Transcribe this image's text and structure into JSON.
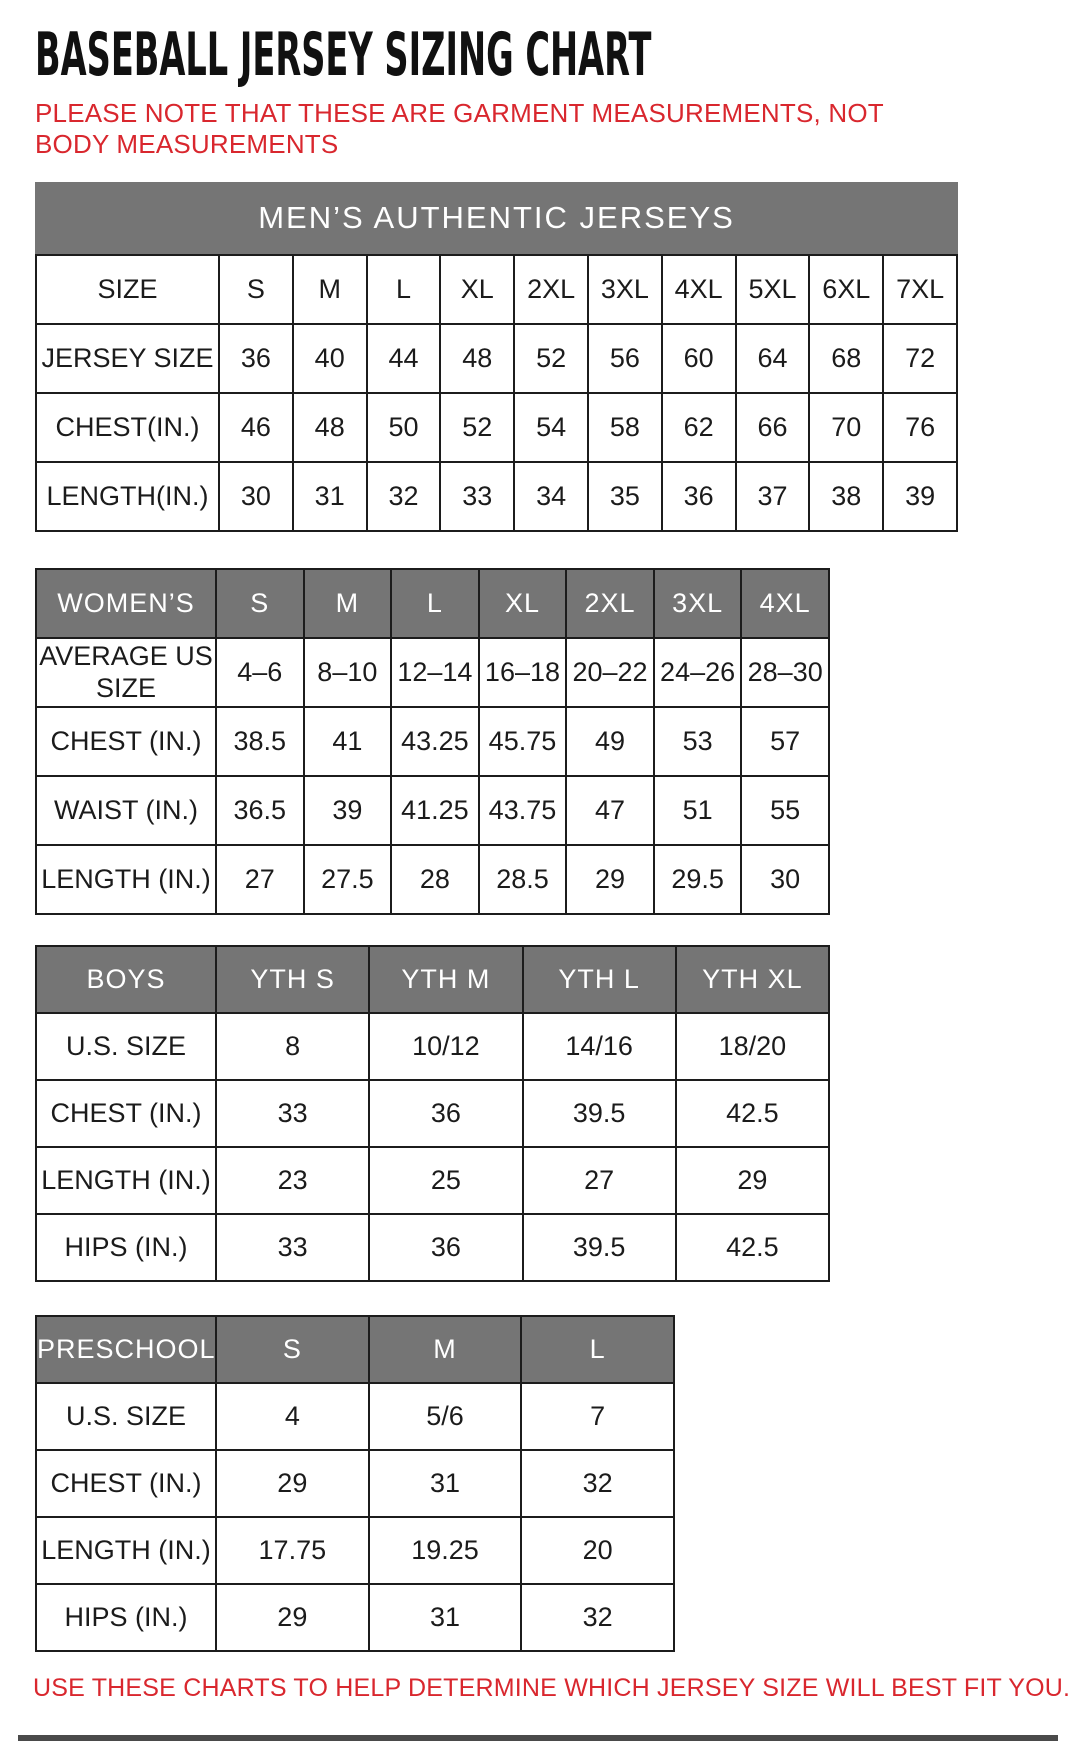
{
  "title": "BASEBALL JERSEY SIZING CHART",
  "note": "PLEASE NOTE THAT THESE ARE GARMENT MEASUREMENTS, NOT BODY MEASUREMENTS",
  "footer": "USE THESE CHARTS TO HELP DETERMINE WHICH JERSEY SIZE WILL BEST FIT YOU.",
  "colors": {
    "accent_red": "#d9272e",
    "banner_gray": "#757575",
    "border_black": "#1c1c1c"
  },
  "tables": [
    {
      "id": "mens",
      "banner": "MEN’S AUTHENTIC JERSEYS",
      "header": null,
      "rows": [
        {
          "label": "SIZE",
          "values": [
            "S",
            "M",
            "L",
            "XL",
            "2XL",
            "3XL",
            "4XL",
            "5XL",
            "6XL",
            "7XL"
          ]
        },
        {
          "label": "JERSEY SIZE",
          "values": [
            "36",
            "40",
            "44",
            "48",
            "52",
            "56",
            "60",
            "64",
            "68",
            "72"
          ]
        },
        {
          "label": "CHEST(IN.)",
          "values": [
            "46",
            "48",
            "50",
            "52",
            "54",
            "58",
            "62",
            "66",
            "70",
            "76"
          ]
        },
        {
          "label": "LENGTH(IN.)",
          "values": [
            "30",
            "31",
            "32",
            "33",
            "34",
            "35",
            "36",
            "37",
            "38",
            "39"
          ]
        }
      ]
    },
    {
      "id": "womens",
      "banner": null,
      "header": {
        "label": "WOMEN’S",
        "values": [
          "S",
          "M",
          "L",
          "XL",
          "2XL",
          "3XL",
          "4XL"
        ]
      },
      "rows": [
        {
          "label": "AVERAGE US SIZE",
          "values": [
            "4–6",
            "8–10",
            "12–14",
            "16–18",
            "20–22",
            "24–26",
            "28–30"
          ]
        },
        {
          "label": "CHEST (IN.)",
          "values": [
            "38.5",
            "41",
            "43.25",
            "45.75",
            "49",
            "53",
            "57"
          ]
        },
        {
          "label": "WAIST (IN.)",
          "values": [
            "36.5",
            "39",
            "41.25",
            "43.75",
            "47",
            "51",
            "55"
          ]
        },
        {
          "label": "LENGTH (IN.)",
          "values": [
            "27",
            "27.5",
            "28",
            "28.5",
            "29",
            "29.5",
            "30"
          ]
        }
      ]
    },
    {
      "id": "boys",
      "banner": null,
      "header": {
        "label": "BOYS",
        "values": [
          "YTH S",
          "YTH M",
          "YTH L",
          "YTH XL"
        ]
      },
      "rows": [
        {
          "label": "U.S. SIZE",
          "values": [
            "8",
            "10/12",
            "14/16",
            "18/20"
          ]
        },
        {
          "label": "CHEST (IN.)",
          "values": [
            "33",
            "36",
            "39.5",
            "42.5"
          ]
        },
        {
          "label": "LENGTH (IN.)",
          "values": [
            "23",
            "25",
            "27",
            "29"
          ]
        },
        {
          "label": "HIPS (IN.)",
          "values": [
            "33",
            "36",
            "39.5",
            "42.5"
          ]
        }
      ]
    },
    {
      "id": "preschool",
      "banner": null,
      "header": {
        "label": "PRESCHOOL",
        "values": [
          "S",
          "M",
          "L"
        ]
      },
      "rows": [
        {
          "label": "U.S. SIZE",
          "values": [
            "4",
            "5/6",
            "7"
          ]
        },
        {
          "label": "CHEST (IN.)",
          "values": [
            "29",
            "31",
            "32"
          ]
        },
        {
          "label": "LENGTH (IN.)",
          "values": [
            "17.75",
            "19.25",
            "20"
          ]
        },
        {
          "label": "HIPS (IN.)",
          "values": [
            "29",
            "31",
            "32"
          ]
        }
      ]
    }
  ]
}
